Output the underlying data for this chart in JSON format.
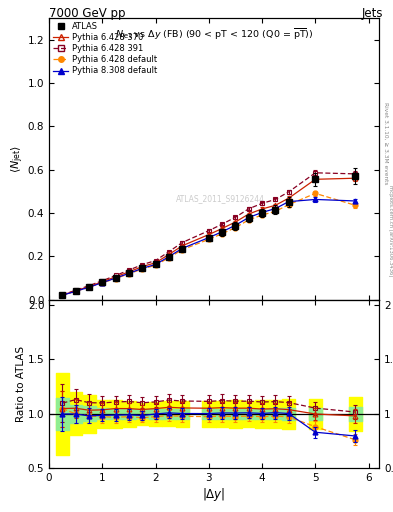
{
  "title_top": "7000 GeV pp",
  "title_right": "Jets",
  "plot_title": "$N_{\\mathrm{jet}}$ vs $\\Delta y$ (FB) (90 < pT < 120 (Q0 = $\\overline{\\mathrm{pT}}$))",
  "watermark": "ATLAS_2011_S9126244",
  "right_label_top": "Rivet 3.1.10, ≥ 3.3M events",
  "right_label_bot": "mcplots.cern.ch [arXiv:1306.3436]",
  "x": [
    0.25,
    0.5,
    0.75,
    1.0,
    1.25,
    1.5,
    1.75,
    2.0,
    2.25,
    2.5,
    3.0,
    3.25,
    3.5,
    3.75,
    4.0,
    4.25,
    4.5,
    5.0,
    5.75
  ],
  "atlas_y": [
    0.02,
    0.038,
    0.058,
    0.079,
    0.1,
    0.122,
    0.146,
    0.162,
    0.196,
    0.235,
    0.285,
    0.31,
    0.34,
    0.375,
    0.4,
    0.415,
    0.45,
    0.555,
    0.57
  ],
  "atlas_yerr": [
    0.003,
    0.003,
    0.004,
    0.004,
    0.005,
    0.006,
    0.006,
    0.007,
    0.009,
    0.011,
    0.014,
    0.015,
    0.017,
    0.018,
    0.02,
    0.021,
    0.024,
    0.03,
    0.035
  ],
  "p6370_y": [
    0.021,
    0.04,
    0.06,
    0.082,
    0.105,
    0.128,
    0.152,
    0.17,
    0.208,
    0.248,
    0.3,
    0.328,
    0.358,
    0.395,
    0.418,
    0.435,
    0.468,
    0.555,
    0.56
  ],
  "p6370_yerr": [
    0.001,
    0.001,
    0.001,
    0.002,
    0.002,
    0.002,
    0.002,
    0.003,
    0.003,
    0.004,
    0.005,
    0.005,
    0.006,
    0.006,
    0.007,
    0.007,
    0.008,
    0.01,
    0.011
  ],
  "p6391_y": [
    0.022,
    0.043,
    0.064,
    0.087,
    0.111,
    0.136,
    0.161,
    0.18,
    0.221,
    0.263,
    0.318,
    0.348,
    0.38,
    0.419,
    0.444,
    0.462,
    0.497,
    0.585,
    0.58
  ],
  "p6391_yerr": [
    0.001,
    0.001,
    0.002,
    0.002,
    0.002,
    0.003,
    0.003,
    0.003,
    0.004,
    0.005,
    0.006,
    0.006,
    0.007,
    0.007,
    0.008,
    0.008,
    0.009,
    0.011,
    0.012
  ],
  "p6def_y": [
    0.021,
    0.038,
    0.057,
    0.077,
    0.097,
    0.119,
    0.141,
    0.158,
    0.193,
    0.23,
    0.278,
    0.304,
    0.332,
    0.368,
    0.39,
    0.407,
    0.438,
    0.49,
    0.435
  ],
  "p6def_yerr": [
    0.001,
    0.001,
    0.001,
    0.002,
    0.002,
    0.002,
    0.002,
    0.003,
    0.003,
    0.004,
    0.005,
    0.005,
    0.006,
    0.006,
    0.007,
    0.007,
    0.008,
    0.01,
    0.011
  ],
  "p8def_y": [
    0.02,
    0.038,
    0.057,
    0.078,
    0.099,
    0.121,
    0.144,
    0.162,
    0.198,
    0.236,
    0.286,
    0.313,
    0.343,
    0.379,
    0.402,
    0.42,
    0.452,
    0.462,
    0.455
  ],
  "p8def_yerr": [
    0.001,
    0.001,
    0.001,
    0.002,
    0.002,
    0.002,
    0.002,
    0.003,
    0.003,
    0.004,
    0.005,
    0.005,
    0.006,
    0.006,
    0.007,
    0.007,
    0.008,
    0.01,
    0.011
  ],
  "atlas_color": "#000000",
  "p6370_color": "#cc2200",
  "p6391_color": "#880022",
  "p6def_color": "#ff8800",
  "p8def_color": "#0000cc",
  "ylim_main": [
    0.0,
    1.3
  ],
  "ylim_ratio": [
    0.5,
    2.05
  ],
  "xlim": [
    0.0,
    6.2
  ]
}
